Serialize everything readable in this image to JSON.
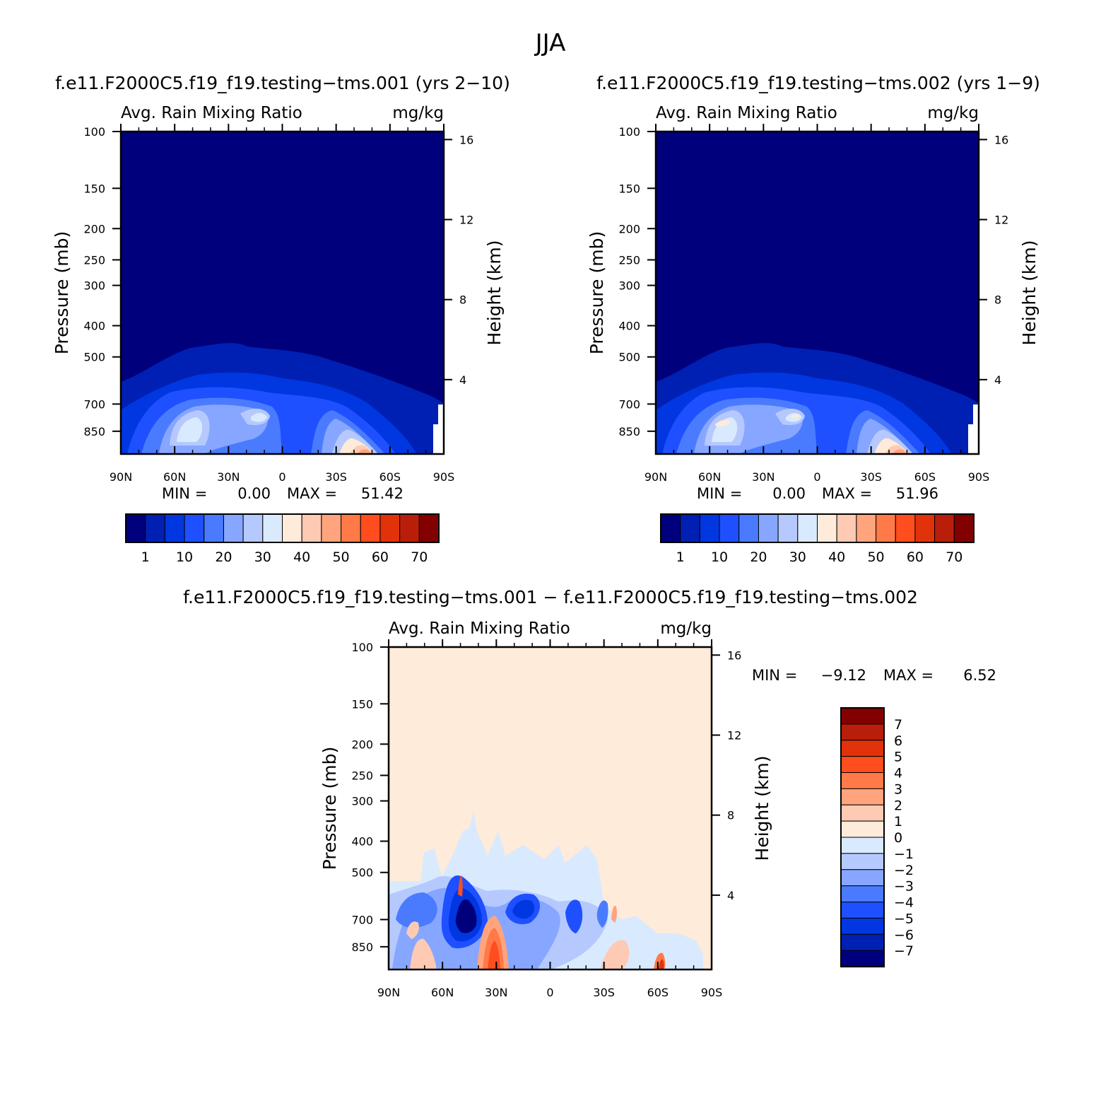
{
  "figure": {
    "season_title": "JJA"
  },
  "chart_data": [
    {
      "type": "heatmap",
      "id": "case1",
      "case_title": "f.e11.F2000C5.f19_f19.testing−tms.001 (yrs 2−10)",
      "left_label": "Avg. Rain Mixing Ratio",
      "right_label": "mg/kg",
      "ylabel": "Pressure (mb)",
      "ylabel_right": "Height (km)",
      "x_ticks": [
        "90N",
        "60N",
        "30N",
        "0",
        "30S",
        "60S",
        "90S"
      ],
      "y_ticks": [
        100,
        150,
        200,
        250,
        300,
        400,
        500,
        700,
        850
      ],
      "y_ticks_right": [
        16,
        12,
        8,
        4
      ],
      "ylim": [
        100,
        1000
      ],
      "y_scale": "log",
      "min_label": "MIN =",
      "min_value": "0.00",
      "max_label": "MAX =",
      "max_value": "51.42",
      "colorbar_orientation": "horizontal",
      "colorbar_labels": [
        "1",
        "10",
        "20",
        "30",
        "40",
        "50",
        "60",
        "70"
      ],
      "colorbar_colors": [
        "#00007d",
        "#0020b4",
        "#0037e1",
        "#1e50ff",
        "#4a7bff",
        "#87a6ff",
        "#b5c9ff",
        "#d9eaff",
        "#ffebd9",
        "#ffcab3",
        "#ffa47d",
        "#ff7a48",
        "#ff4d1e",
        "#e1320a",
        "#b91e0a",
        "#820000"
      ],
      "field": "rain_mixing_ratio_case1"
    },
    {
      "type": "heatmap",
      "id": "case2",
      "case_title": "f.e11.F2000C5.f19_f19.testing−tms.002 (yrs 1−9)",
      "left_label": "Avg. Rain Mixing Ratio",
      "right_label": "mg/kg",
      "ylabel": "Pressure (mb)",
      "ylabel_right": "Height (km)",
      "x_ticks": [
        "90N",
        "60N",
        "30N",
        "0",
        "30S",
        "60S",
        "90S"
      ],
      "y_ticks": [
        100,
        150,
        200,
        250,
        300,
        400,
        500,
        700,
        850
      ],
      "y_ticks_right": [
        16,
        12,
        8,
        4
      ],
      "ylim": [
        100,
        1000
      ],
      "y_scale": "log",
      "min_label": "MIN =",
      "min_value": "0.00",
      "max_label": "MAX =",
      "max_value": "51.96",
      "colorbar_orientation": "horizontal",
      "colorbar_labels": [
        "1",
        "10",
        "20",
        "30",
        "40",
        "50",
        "60",
        "70"
      ],
      "colorbar_colors": [
        "#00007d",
        "#0020b4",
        "#0037e1",
        "#1e50ff",
        "#4a7bff",
        "#87a6ff",
        "#b5c9ff",
        "#d9eaff",
        "#ffebd9",
        "#ffcab3",
        "#ffa47d",
        "#ff7a48",
        "#ff4d1e",
        "#e1320a",
        "#b91e0a",
        "#820000"
      ],
      "field": "rain_mixing_ratio_case2"
    },
    {
      "type": "heatmap",
      "id": "diff",
      "case_title": "f.e11.F2000C5.f19_f19.testing−tms.001 − f.e11.F2000C5.f19_f19.testing−tms.002",
      "left_label": "Avg. Rain Mixing Ratio",
      "right_label": "mg/kg",
      "ylabel": "Pressure (mb)",
      "ylabel_right": "Height (km)",
      "x_ticks": [
        "90N",
        "60N",
        "30N",
        "0",
        "30S",
        "60S",
        "90S"
      ],
      "y_ticks": [
        100,
        150,
        200,
        250,
        300,
        400,
        500,
        700,
        850
      ],
      "y_ticks_right": [
        16,
        12,
        8,
        4
      ],
      "ylim": [
        100,
        1000
      ],
      "y_scale": "log",
      "min_label": "MIN =",
      "min_value": "−9.12",
      "max_label": "MAX =",
      "max_value": "6.52",
      "colorbar_orientation": "vertical",
      "colorbar_labels": [
        "7",
        "6",
        "5",
        "4",
        "3",
        "2",
        "1",
        "0",
        "−1",
        "−2",
        "−3",
        "−4",
        "−5",
        "−6",
        "−7"
      ],
      "colorbar_colors": [
        "#820000",
        "#b91e0a",
        "#e1320a",
        "#ff4d1e",
        "#ff7a48",
        "#ffa47d",
        "#ffcab3",
        "#ffebd9",
        "#d9eaff",
        "#b5c9ff",
        "#87a6ff",
        "#4a7bff",
        "#1e50ff",
        "#0037e1",
        "#0020b4",
        "#00007d"
      ],
      "field": "rain_mixing_ratio_difference"
    }
  ]
}
